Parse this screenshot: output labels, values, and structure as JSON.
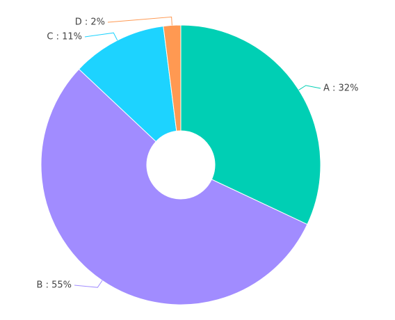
{
  "chart_data": {
    "type": "pie",
    "values": [
      32,
      55,
      11,
      2
    ],
    "value_labels": [
      "A : 32%",
      "B : 55%",
      "C : 11%",
      "D : 2%"
    ],
    "colors": [
      "#00cfb4",
      "#a18cff",
      "#1dd3ff",
      "#ff9952"
    ],
    "donut": true
  }
}
